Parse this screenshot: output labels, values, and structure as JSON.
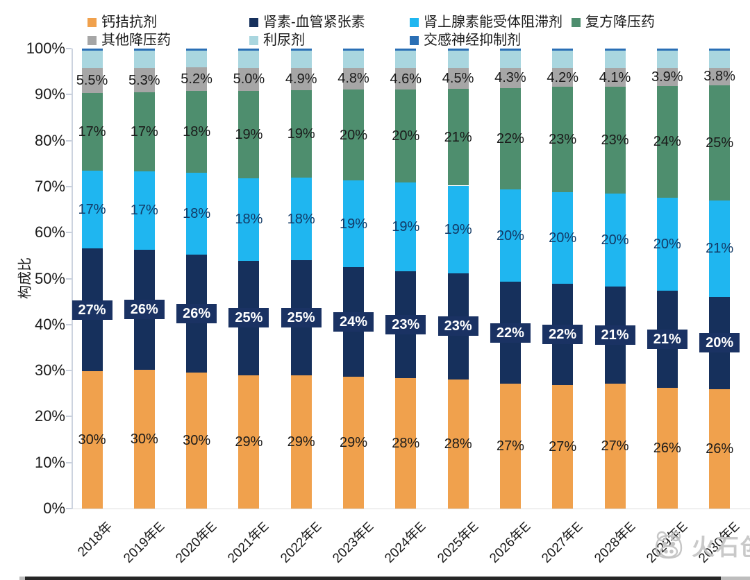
{
  "chart_data": {
    "type": "bar",
    "variant": "stacked-100-percent",
    "title": "",
    "xlabel": "",
    "ylabel": "构成比",
    "ylim": [
      0,
      100
    ],
    "grid": false,
    "legend_position": "top",
    "y_ticks": [
      "0%",
      "10%",
      "20%",
      "30%",
      "40%",
      "50%",
      "60%",
      "70%",
      "80%",
      "90%",
      "100%"
    ],
    "categories": [
      "2018年",
      "2019年E",
      "2020年E",
      "2021年E",
      "2022年E",
      "2023年E",
      "2024年E",
      "2025年E",
      "2026年E",
      "2027年E",
      "2028年E",
      "2029年E",
      "2030年E"
    ],
    "series": [
      {
        "name": "钙拮抗剂",
        "color": "#F0A14D",
        "values": [
          30,
          30,
          30,
          29,
          29,
          29,
          28,
          28,
          27,
          27,
          27,
          26,
          26
        ],
        "labels": [
          "30%",
          "30%",
          "30%",
          "29%",
          "29%",
          "29%",
          "28%",
          "28%",
          "27%",
          "27%",
          "27%",
          "26%",
          "26%"
        ]
      },
      {
        "name": "肾素-血管紧张素",
        "color": "#16305C",
        "values": [
          27,
          26,
          26,
          25,
          25,
          24,
          23,
          23,
          22,
          22,
          21,
          21,
          20
        ],
        "labels": [
          "27%",
          "26%",
          "26%",
          "25%",
          "25%",
          "24%",
          "23%",
          "23%",
          "22%",
          "22%",
          "21%",
          "21%",
          "20%"
        ]
      },
      {
        "name": "肾上腺素能受体阻滞剂",
        "color": "#1FB6F0",
        "values": [
          17,
          17,
          18,
          18,
          18,
          19,
          19,
          19,
          20,
          20,
          20,
          20,
          21
        ],
        "labels": [
          "17%",
          "17%",
          "18%",
          "18%",
          "18%",
          "19%",
          "19%",
          "19%",
          "20%",
          "20%",
          "20%",
          "20%",
          "21%"
        ]
      },
      {
        "name": "复方降压药",
        "color": "#4E8E6E",
        "values": [
          17,
          17,
          18,
          19,
          19,
          20,
          20,
          21,
          22,
          23,
          23,
          24,
          25
        ],
        "labels": [
          "17%",
          "17%",
          "18%",
          "19%",
          "19%",
          "20%",
          "20%",
          "21%",
          "22%",
          "23%",
          "23%",
          "24%",
          "25%"
        ]
      },
      {
        "name": "其他降压药",
        "color": "#A6A6A6",
        "values": [
          5.5,
          5.3,
          5.2,
          5.0,
          4.9,
          4.8,
          4.6,
          4.5,
          4.3,
          4.2,
          4.1,
          3.9,
          3.8
        ],
        "labels": [
          "5.5%",
          "5.3%",
          "5.2%",
          "5.0%",
          "4.9%",
          "4.8%",
          "4.6%",
          "4.5%",
          "4.3%",
          "4.2%",
          "4.1%",
          "3.9%",
          "3.8%"
        ]
      },
      {
        "name": "利尿剂",
        "color": "#A9D6DF",
        "values": [
          3.7,
          3.7,
          3.7,
          3.7,
          3.7,
          3.7,
          3.7,
          3.7,
          3.7,
          3.7,
          3.7,
          3.7,
          3.7
        ]
      },
      {
        "name": "交感神经抑制剂",
        "color": "#2A6FB5",
        "values": [
          0.5,
          0.5,
          0.5,
          0.5,
          0.5,
          0.5,
          0.5,
          0.5,
          0.5,
          0.5,
          0.5,
          0.5,
          0.5
        ]
      }
    ]
  },
  "watermark": {
    "text": "火石创造"
  }
}
